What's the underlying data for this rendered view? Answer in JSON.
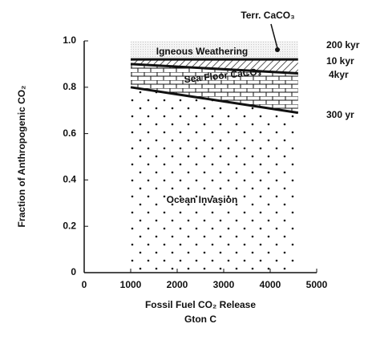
{
  "chart_data": {
    "type": "band",
    "x": [
      1000,
      4600
    ],
    "regions": [
      {
        "label": "Ocean Invasion",
        "lower": [
          0,
          0
        ],
        "upper": [
          0.8,
          0.69
        ],
        "pattern": "dots"
      },
      {
        "label": "Sea Floor CaCO₃",
        "lower": [
          0.8,
          0.69
        ],
        "upper": [
          0.9,
          0.86
        ],
        "pattern": "bricks"
      },
      {
        "label": "Terr. CaCO₃",
        "lower": [
          0.9,
          0.86
        ],
        "upper": [
          0.92,
          0.92
        ],
        "pattern": "hatch"
      },
      {
        "label": "Igneous Weathering",
        "lower": [
          0.92,
          0.92
        ],
        "upper": [
          1,
          1
        ],
        "pattern": "light"
      }
    ],
    "timescales": [
      "200 kyr",
      "10 kyr",
      "4kyr",
      "300 yr"
    ],
    "xlabel": [
      "Fossil Fuel CO₂ Release",
      "Gton C"
    ],
    "ylabel": "Fraction of Anthropogenic CO₂",
    "xlim": [
      0,
      5000
    ],
    "ylim": [
      0,
      1
    ],
    "xticks": [
      0,
      1000,
      2000,
      3000,
      4000,
      5000
    ],
    "yticks": [
      0,
      {
        "value": 0.2,
        "label": "0.2"
      },
      {
        "value": 0.4,
        "label": "0.4"
      },
      {
        "value": 0.6,
        "label": "0.6"
      },
      {
        "value": 0.8,
        "label": "0.8"
      },
      {
        "value": 1,
        "label": "1.0"
      }
    ]
  }
}
